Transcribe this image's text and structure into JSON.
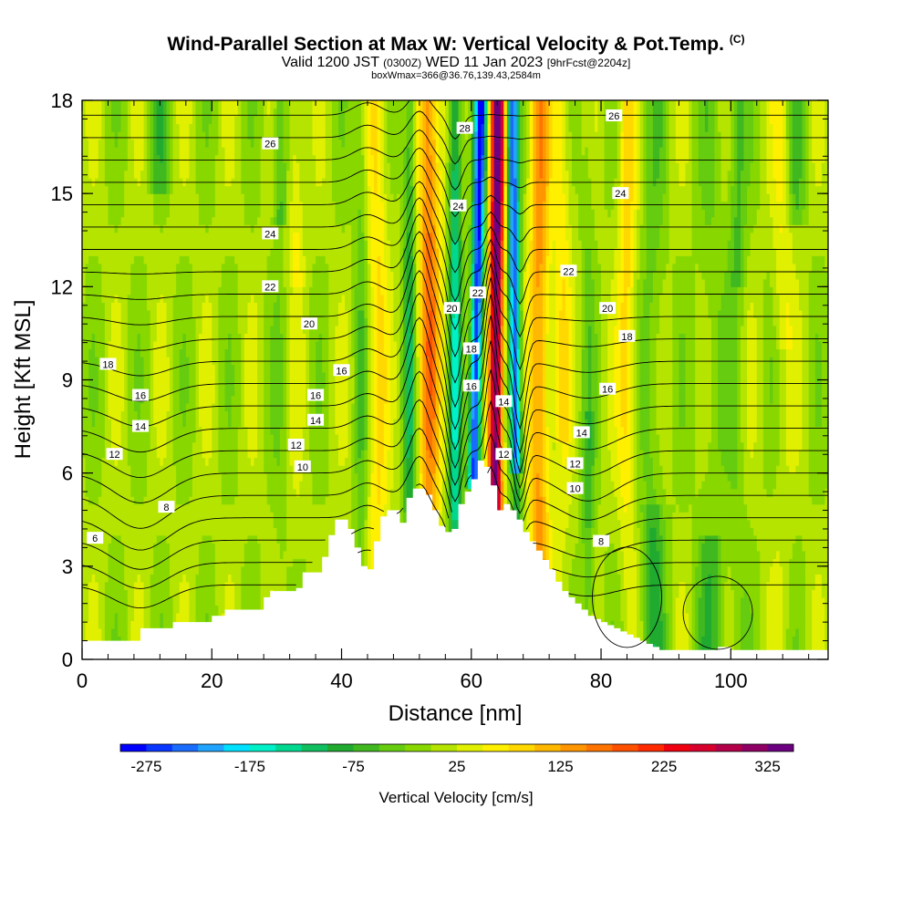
{
  "title": {
    "main": "Wind-Parallel Section at Max W: Vertical Velocity & Pot.Temp.",
    "copyright": "(C)",
    "valid_prefix": "Valid 1200 JST",
    "valid_zulu": "(0300Z)",
    "valid_date": "WED 11 Jan 2023",
    "forecast": "[9hrFcst@2204z]",
    "boxline": "boxWmax=366@36.76,139.43,2584m"
  },
  "chart_data": {
    "type": "heatmap",
    "xlabel": "Distance [nm]",
    "ylabel": "Height [Kft MSL]",
    "xlim": [
      0,
      115
    ],
    "ylim": [
      0,
      18
    ],
    "xticks": [
      0,
      20,
      40,
      60,
      80,
      100
    ],
    "yticks": [
      0,
      3,
      6,
      9,
      12,
      15,
      18
    ],
    "colorbar": {
      "label": "Vertical Velocity [cm/s]",
      "tick_labels": [
        -275,
        -175,
        -75,
        25,
        125,
        225,
        325
      ],
      "levels": [
        -300,
        -275,
        -250,
        -225,
        -200,
        -175,
        -150,
        -125,
        -100,
        -75,
        -50,
        -25,
        0,
        25,
        50,
        75,
        100,
        125,
        150,
        175,
        200,
        225,
        250,
        275,
        300,
        325,
        350
      ],
      "colors": [
        "#0000ff",
        "#0a37ff",
        "#1a6cff",
        "#20a4ff",
        "#00e0ff",
        "#00f0c8",
        "#00d890",
        "#10c060",
        "#20aa30",
        "#40b820",
        "#66cc10",
        "#88d800",
        "#b4e400",
        "#e0f000",
        "#fff000",
        "#ffd800",
        "#ffb800",
        "#ff9600",
        "#ff7400",
        "#ff5000",
        "#ff2a00",
        "#f00010",
        "#d8002c",
        "#b40048",
        "#900064",
        "#6c0080"
      ]
    },
    "terrain_profile": {
      "x": [
        0,
        8,
        9,
        13,
        14,
        20,
        22,
        23,
        25,
        28,
        29,
        33,
        34,
        37,
        38,
        39,
        40,
        41,
        42,
        43,
        44,
        45,
        46,
        47,
        48,
        49,
        50,
        51,
        52,
        53,
        54,
        55,
        56,
        57,
        58,
        59,
        60,
        61,
        62,
        63,
        64,
        65,
        66,
        67,
        68,
        69,
        70,
        71,
        72,
        73,
        74,
        75,
        76,
        77,
        78,
        79,
        80,
        81,
        82,
        83,
        84,
        85,
        86,
        87,
        88,
        89,
        90,
        91,
        92,
        93,
        94,
        95,
        96,
        97,
        98,
        99,
        100,
        101,
        102,
        103,
        104,
        105,
        106,
        107,
        108,
        109,
        110,
        111,
        112,
        113,
        114,
        115
      ],
      "y": [
        0.6,
        0.6,
        1.0,
        1.0,
        1.2,
        1.4,
        1.6,
        1.6,
        1.6,
        2.0,
        2.2,
        2.3,
        2.8,
        3.3,
        4.0,
        4.5,
        4.5,
        4.2,
        3.6,
        3.0,
        2.9,
        3.8,
        4.6,
        4.8,
        4.8,
        4.4,
        5.2,
        5.5,
        5.5,
        5.3,
        4.8,
        4.3,
        4.1,
        4.2,
        5.0,
        5.4,
        5.8,
        6.4,
        6.2,
        5.6,
        4.8,
        5.0,
        4.8,
        4.5,
        4.1,
        3.8,
        3.5,
        3.2,
        2.9,
        2.5,
        2.2,
        2.0,
        1.8,
        1.6,
        1.4,
        1.3,
        1.2,
        1.1,
        1.0,
        0.9,
        0.8,
        0.7,
        0.6,
        0.5,
        0.4,
        0.3,
        0.3,
        0.3,
        0.3,
        0.3,
        0.3,
        0.3,
        0.3,
        0.3,
        0.4,
        0.4,
        0.3,
        0.3,
        0.3,
        0.3,
        0.3,
        0.3,
        0.3,
        0.3,
        0.3,
        0.3,
        0.3,
        0.3,
        0.3,
        0.3,
        0.3,
        0.3
      ]
    },
    "isentrope_labels": [
      {
        "text": "26",
        "x": 29,
        "y": 16.6
      },
      {
        "text": "24",
        "x": 29,
        "y": 13.7
      },
      {
        "text": "22",
        "x": 29,
        "y": 12.0
      },
      {
        "text": "20",
        "x": 35,
        "y": 10.8
      },
      {
        "text": "18",
        "x": 4,
        "y": 9.5
      },
      {
        "text": "16",
        "x": 9,
        "y": 8.5
      },
      {
        "text": "14",
        "x": 9,
        "y": 7.5
      },
      {
        "text": "12",
        "x": 5,
        "y": 6.6
      },
      {
        "text": "8",
        "x": 13,
        "y": 4.9
      },
      {
        "text": "6",
        "x": 2,
        "y": 3.9
      },
      {
        "text": "16",
        "x": 40,
        "y": 9.3
      },
      {
        "text": "16",
        "x": 36,
        "y": 8.5
      },
      {
        "text": "14",
        "x": 36,
        "y": 7.7
      },
      {
        "text": "12",
        "x": 33,
        "y": 6.9
      },
      {
        "text": "10",
        "x": 34,
        "y": 6.2
      },
      {
        "text": "28",
        "x": 59,
        "y": 17.1
      },
      {
        "text": "24",
        "x": 58,
        "y": 14.6
      },
      {
        "text": "22",
        "x": 61,
        "y": 11.8
      },
      {
        "text": "20",
        "x": 57,
        "y": 11.3
      },
      {
        "text": "18",
        "x": 60,
        "y": 10.0
      },
      {
        "text": "16",
        "x": 60,
        "y": 8.8
      },
      {
        "text": "14",
        "x": 65,
        "y": 8.3
      },
      {
        "text": "12",
        "x": 65,
        "y": 6.6
      },
      {
        "text": "26",
        "x": 82,
        "y": 17.5
      },
      {
        "text": "24",
        "x": 83,
        "y": 15.0
      },
      {
        "text": "22",
        "x": 75,
        "y": 12.5
      },
      {
        "text": "20",
        "x": 81,
        "y": 11.3
      },
      {
        "text": "18",
        "x": 84,
        "y": 10.4
      },
      {
        "text": "16",
        "x": 81,
        "y": 8.7
      },
      {
        "text": "14",
        "x": 77,
        "y": 7.3
      },
      {
        "text": "12",
        "x": 76,
        "y": 6.3
      },
      {
        "text": "10",
        "x": 76,
        "y": 5.5
      },
      {
        "text": "8",
        "x": 80,
        "y": 3.8
      }
    ]
  }
}
